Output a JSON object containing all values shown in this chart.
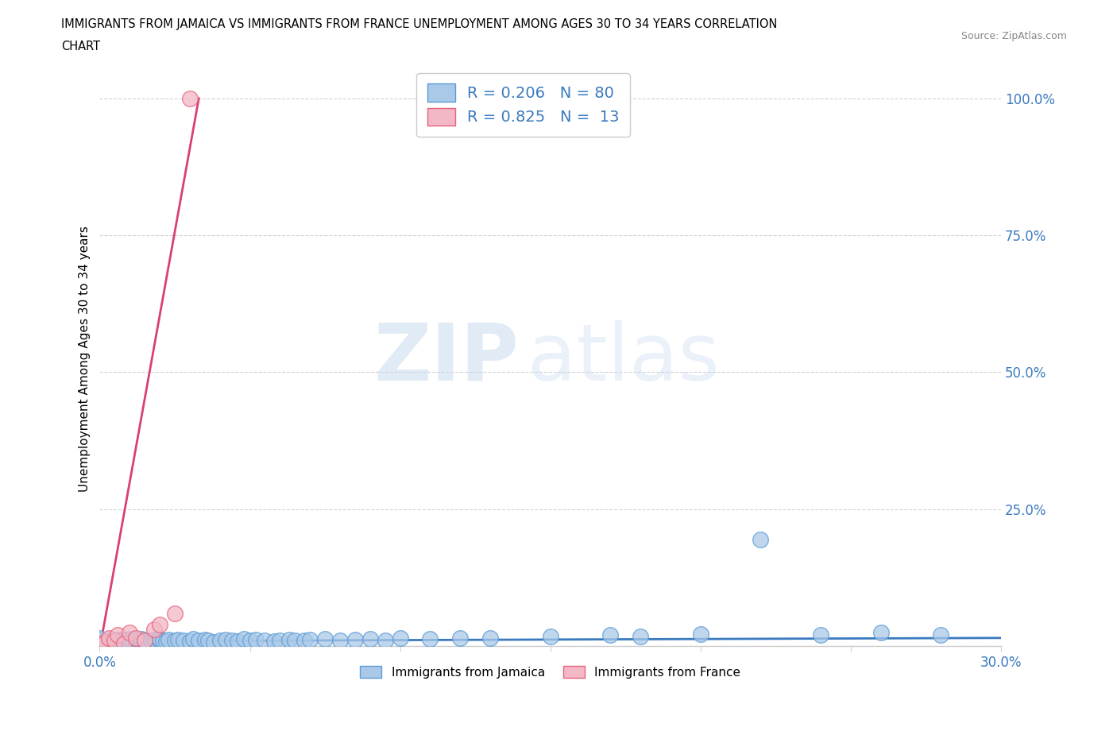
{
  "title_line1": "IMMIGRANTS FROM JAMAICA VS IMMIGRANTS FROM FRANCE UNEMPLOYMENT AMONG AGES 30 TO 34 YEARS CORRELATION",
  "title_line2": "CHART",
  "source_text": "Source: ZipAtlas.com",
  "ylabel": "Unemployment Among Ages 30 to 34 years",
  "xlim": [
    0.0,
    0.3
  ],
  "ylim": [
    0.0,
    1.05
  ],
  "jamaica_color": "#aac9e8",
  "jamaica_edge_color": "#5b9bd5",
  "france_color": "#f2b8c6",
  "france_edge_color": "#e8607a",
  "jamaica_line_color": "#3a7abf",
  "france_line_color": "#d94070",
  "R_jamaica": 0.206,
  "N_jamaica": 80,
  "R_france": 0.825,
  "N_france": 13,
  "watermark_zip": "ZIP",
  "watermark_atlas": "atlas",
  "jamaica_x": [
    0.0,
    0.0,
    0.0,
    0.0,
    0.0,
    0.002,
    0.002,
    0.003,
    0.004,
    0.004,
    0.005,
    0.005,
    0.006,
    0.006,
    0.007,
    0.007,
    0.008,
    0.008,
    0.009,
    0.009,
    0.01,
    0.01,
    0.01,
    0.011,
    0.012,
    0.012,
    0.013,
    0.014,
    0.014,
    0.015,
    0.015,
    0.016,
    0.017,
    0.018,
    0.019,
    0.02,
    0.02,
    0.021,
    0.022,
    0.023,
    0.025,
    0.026,
    0.028,
    0.03,
    0.031,
    0.033,
    0.035,
    0.036,
    0.038,
    0.04,
    0.042,
    0.044,
    0.046,
    0.048,
    0.05,
    0.052,
    0.055,
    0.058,
    0.06,
    0.063,
    0.065,
    0.068,
    0.07,
    0.075,
    0.08,
    0.085,
    0.09,
    0.095,
    0.1,
    0.11,
    0.12,
    0.13,
    0.15,
    0.17,
    0.18,
    0.2,
    0.22,
    0.24,
    0.26,
    0.28
  ],
  "jamaica_y": [
    0.005,
    0.008,
    0.01,
    0.012,
    0.015,
    0.005,
    0.008,
    0.01,
    0.006,
    0.012,
    0.005,
    0.008,
    0.01,
    0.012,
    0.007,
    0.01,
    0.008,
    0.012,
    0.009,
    0.011,
    0.006,
    0.009,
    0.013,
    0.01,
    0.008,
    0.012,
    0.01,
    0.007,
    0.013,
    0.009,
    0.011,
    0.008,
    0.01,
    0.012,
    0.009,
    0.01,
    0.013,
    0.011,
    0.009,
    0.012,
    0.01,
    0.012,
    0.011,
    0.009,
    0.013,
    0.01,
    0.012,
    0.01,
    0.008,
    0.011,
    0.012,
    0.01,
    0.009,
    0.013,
    0.01,
    0.012,
    0.011,
    0.009,
    0.01,
    0.012,
    0.011,
    0.01,
    0.012,
    0.013,
    0.011,
    0.012,
    0.013,
    0.011,
    0.015,
    0.013,
    0.015,
    0.014,
    0.018,
    0.02,
    0.018,
    0.022,
    0.195,
    0.02,
    0.025,
    0.02
  ],
  "france_x": [
    0.0,
    0.002,
    0.003,
    0.005,
    0.006,
    0.008,
    0.01,
    0.012,
    0.015,
    0.018,
    0.02,
    0.025,
    0.03
  ],
  "france_y": [
    0.005,
    0.008,
    0.015,
    0.01,
    0.02,
    0.005,
    0.025,
    0.015,
    0.01,
    0.03,
    0.04,
    0.06,
    1.0
  ],
  "jam_line_x": [
    0.0,
    0.3
  ],
  "jam_line_y": [
    0.009,
    0.015
  ],
  "fr_line_x": [
    0.0,
    0.033
  ],
  "fr_line_y": [
    -0.005,
    1.0
  ]
}
